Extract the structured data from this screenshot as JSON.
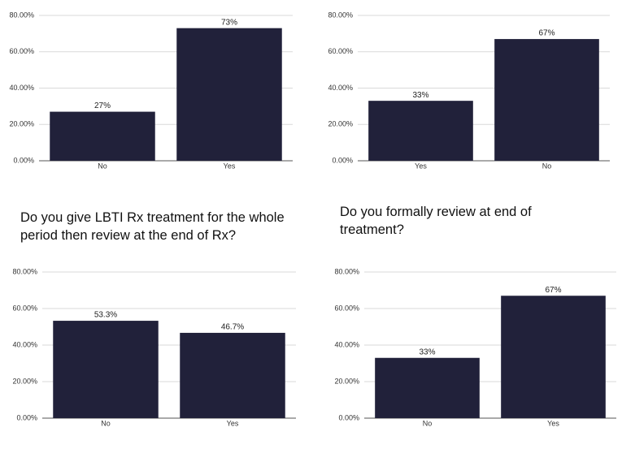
{
  "chart_data": [
    {
      "type": "bar",
      "categories": [
        "No",
        "Yes"
      ],
      "values": [
        27,
        73
      ],
      "value_labels": [
        "27%",
        "73%"
      ],
      "color": "#21213a",
      "ylim": [
        0,
        80
      ],
      "yticks": [
        {
          "value": 0,
          "label": "0.00%"
        },
        {
          "value": 20,
          "label": "20.00%"
        },
        {
          "value": 40,
          "label": "40.00%"
        },
        {
          "value": 60,
          "label": "60.00%"
        },
        {
          "value": 80,
          "label": "80.00%"
        }
      ],
      "grid": true
    },
    {
      "type": "bar",
      "categories": [
        "Yes",
        "No"
      ],
      "values": [
        33,
        67
      ],
      "value_labels": [
        "33%",
        "67%"
      ],
      "color": "#21213a",
      "ylim": [
        0,
        80
      ],
      "yticks": [
        {
          "value": 0,
          "label": "0.00%"
        },
        {
          "value": 20,
          "label": "20.00%"
        },
        {
          "value": 40,
          "label": "40.00%"
        },
        {
          "value": 60,
          "label": "60.00%"
        },
        {
          "value": 80,
          "label": "80.00%"
        }
      ],
      "grid": true
    },
    {
      "type": "bar",
      "title": "Do you give LBTI Rx treatment for the whole period then review at the end of Rx?",
      "categories": [
        "No",
        "Yes"
      ],
      "values": [
        53.3,
        46.7
      ],
      "value_labels": [
        "53.3%",
        "46.7%"
      ],
      "color": "#21213a",
      "ylim": [
        0,
        80
      ],
      "yticks": [
        {
          "value": 0,
          "label": "0.00%"
        },
        {
          "value": 20,
          "label": "20.00%"
        },
        {
          "value": 40,
          "label": "40.00%"
        },
        {
          "value": 60,
          "label": "60.00%"
        },
        {
          "value": 80,
          "label": "80.00%"
        }
      ],
      "grid": true
    },
    {
      "type": "bar",
      "title": "Do you formally review at end of treatment?",
      "categories": [
        "No",
        "Yes"
      ],
      "values": [
        33,
        67
      ],
      "value_labels": [
        "33%",
        "67%"
      ],
      "color": "#21213a",
      "ylim": [
        0,
        80
      ],
      "yticks": [
        {
          "value": 0,
          "label": "0.00%"
        },
        {
          "value": 20,
          "label": "20.00%"
        },
        {
          "value": 40,
          "label": "40.00%"
        },
        {
          "value": 60,
          "label": "60.00%"
        },
        {
          "value": 80,
          "label": "80.00%"
        }
      ],
      "grid": true
    }
  ]
}
